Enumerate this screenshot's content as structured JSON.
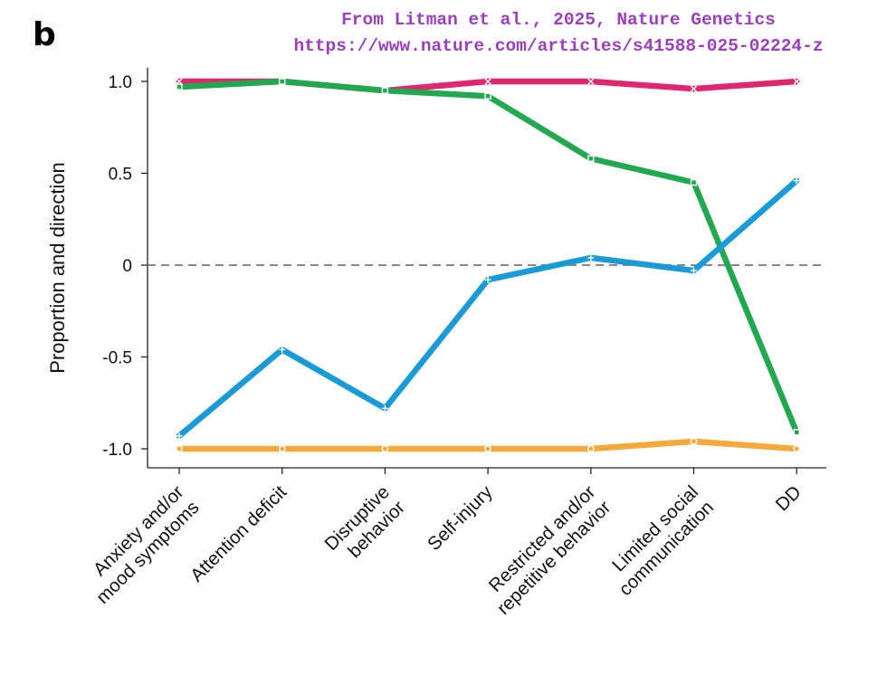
{
  "panel_label": "b",
  "source": {
    "line1": "From Litman et al., 2025, Nature Genetics",
    "line2": "https://www.nature.com/articles/s41588-025-02224-z",
    "color": "#9b3fc0"
  },
  "chart_data": {
    "type": "line",
    "title": "",
    "xlabel": "",
    "ylabel": "Proportion and direction",
    "ylim": [
      -1.1,
      1.1
    ],
    "yticks": [
      1.0,
      0.5,
      0,
      -0.5,
      -1.0
    ],
    "ytick_labels": [
      "1.0",
      "0.5",
      "0",
      "-0.5",
      "-1.0"
    ],
    "reference_line": 0,
    "categories": [
      [
        "Anxiety and/or",
        "mood symptoms"
      ],
      [
        "Attention deficit"
      ],
      [
        "Disruptive",
        "behavior"
      ],
      [
        "Self-injury"
      ],
      [
        "Restricted and/or",
        "repetitive behavior"
      ],
      [
        "Limited social",
        "communication"
      ],
      [
        "DD"
      ]
    ],
    "series": [
      {
        "color": "#e0266e",
        "marker": "x",
        "values": [
          1.0,
          1.0,
          0.95,
          1.0,
          1.0,
          0.96,
          1.0
        ]
      },
      {
        "color": "#22a94f",
        "marker": "square",
        "values": [
          0.97,
          1.0,
          0.95,
          0.92,
          0.58,
          0.45,
          -0.91
        ]
      },
      {
        "color": "#1a9bd7",
        "marker": "plus",
        "values": [
          -0.93,
          -0.46,
          -0.78,
          -0.08,
          0.04,
          -0.03,
          0.46
        ]
      },
      {
        "color": "#f4a93a",
        "marker": "circle",
        "values": [
          -1.0,
          -1.0,
          -1.0,
          -1.0,
          -1.0,
          -0.96,
          -1.0
        ]
      }
    ]
  }
}
